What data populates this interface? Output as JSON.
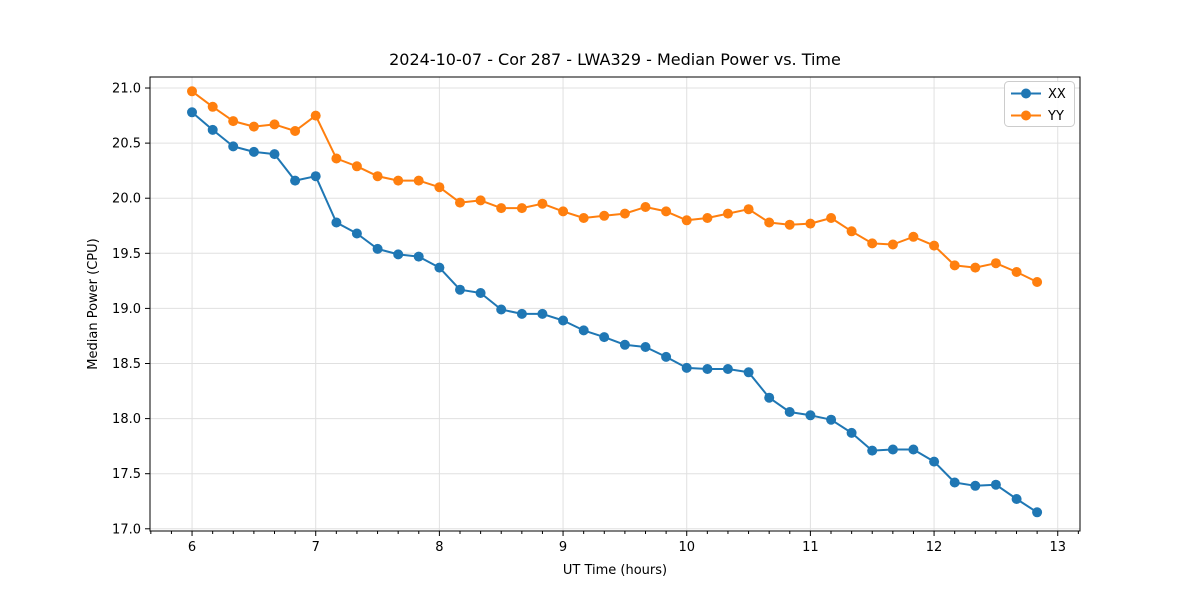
{
  "chart_data": {
    "type": "line",
    "title": "2024-10-07 - Cor 287 - LWA329 - Median Power vs. Time",
    "xlabel": "UT Time (hours)",
    "ylabel": "Median Power (CPU)",
    "xlim": [
      5.66,
      13.18
    ],
    "ylim": [
      16.98,
      21.1
    ],
    "xticks": [
      6,
      7,
      8,
      9,
      10,
      11,
      12,
      13
    ],
    "xtick_labels": [
      "6",
      "7",
      "8",
      "9",
      "10",
      "11",
      "12",
      "13"
    ],
    "yticks": [
      17.0,
      17.5,
      18.0,
      18.5,
      19.0,
      19.5,
      20.0,
      20.5,
      21.0
    ],
    "ytick_labels": [
      "17.0",
      "17.5",
      "18.0",
      "18.5",
      "19.0",
      "19.5",
      "20.0",
      "20.5",
      "21.0"
    ],
    "x_minor_step": 0.1666667,
    "grid": true,
    "legend_position": "upper right",
    "colors": {
      "grid": "#e0e0e0",
      "axes": "#000000",
      "legend_edge": "#cccccc"
    },
    "x": [
      6.0,
      6.167,
      6.333,
      6.5,
      6.667,
      6.833,
      7.0,
      7.167,
      7.333,
      7.5,
      7.667,
      7.833,
      8.0,
      8.167,
      8.333,
      8.5,
      8.667,
      8.833,
      9.0,
      9.167,
      9.333,
      9.5,
      9.667,
      9.833,
      10.0,
      10.167,
      10.333,
      10.5,
      10.667,
      10.833,
      11.0,
      11.167,
      11.333,
      11.5,
      11.667,
      11.833,
      12.0,
      12.167,
      12.333,
      12.5,
      12.667,
      12.833
    ],
    "series": [
      {
        "name": "XX",
        "color": "#1f77b4",
        "values": [
          20.78,
          20.62,
          20.47,
          20.42,
          20.4,
          20.16,
          20.2,
          19.78,
          19.68,
          19.54,
          19.49,
          19.47,
          19.37,
          19.17,
          19.14,
          18.99,
          18.95,
          18.95,
          18.89,
          18.8,
          18.74,
          18.67,
          18.65,
          18.56,
          18.46,
          18.45,
          18.45,
          18.42,
          18.19,
          18.06,
          18.03,
          17.99,
          17.87,
          17.71,
          17.72,
          17.72,
          17.61,
          17.42,
          17.39,
          17.4,
          17.27,
          17.15
        ]
      },
      {
        "name": "YY",
        "color": "#ff7f0e",
        "values": [
          20.97,
          20.83,
          20.7,
          20.65,
          20.67,
          20.61,
          20.75,
          20.36,
          20.29,
          20.2,
          20.16,
          20.16,
          20.1,
          19.96,
          19.98,
          19.91,
          19.91,
          19.95,
          19.88,
          19.82,
          19.84,
          19.86,
          19.92,
          19.88,
          19.8,
          19.82,
          19.86,
          19.9,
          19.78,
          19.76,
          19.77,
          19.82,
          19.7,
          19.59,
          19.58,
          19.65,
          19.57,
          19.39,
          19.37,
          19.41,
          19.33,
          19.24
        ]
      }
    ]
  }
}
